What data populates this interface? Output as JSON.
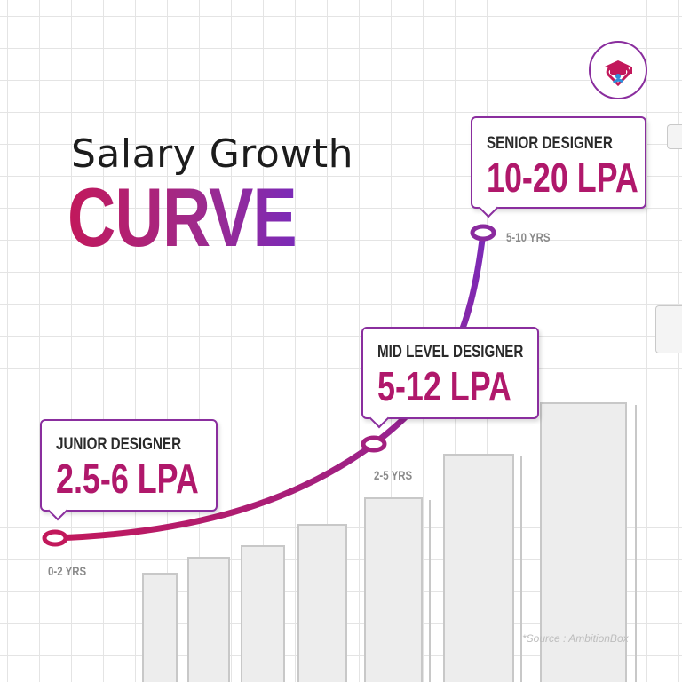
{
  "title": {
    "line1": "Salary Growth",
    "line2": "CURVE"
  },
  "levels": [
    {
      "role": "JUNIOR DESIGNER",
      "salary": "2.5-6 LPA",
      "years": "0-2 YRS"
    },
    {
      "role": "MID LEVEL DESIGNER",
      "salary": "5-12 LPA",
      "years": "2-5 YRS"
    },
    {
      "role": "SENIOR DESIGNER",
      "salary": "10-20 LPA",
      "years": "5-10 YRS"
    }
  ],
  "source": "*Source : AmbitionBox",
  "logo": {
    "icon": "graduation-cap-heart-icon"
  },
  "colors": {
    "accent_pink": "#c2185b",
    "accent_purple": "#7b2ab8",
    "box_border": "#8a2e9e",
    "salary_text": "#b0186b",
    "years_text": "#8a8a8a",
    "bars": "#ededed"
  }
}
